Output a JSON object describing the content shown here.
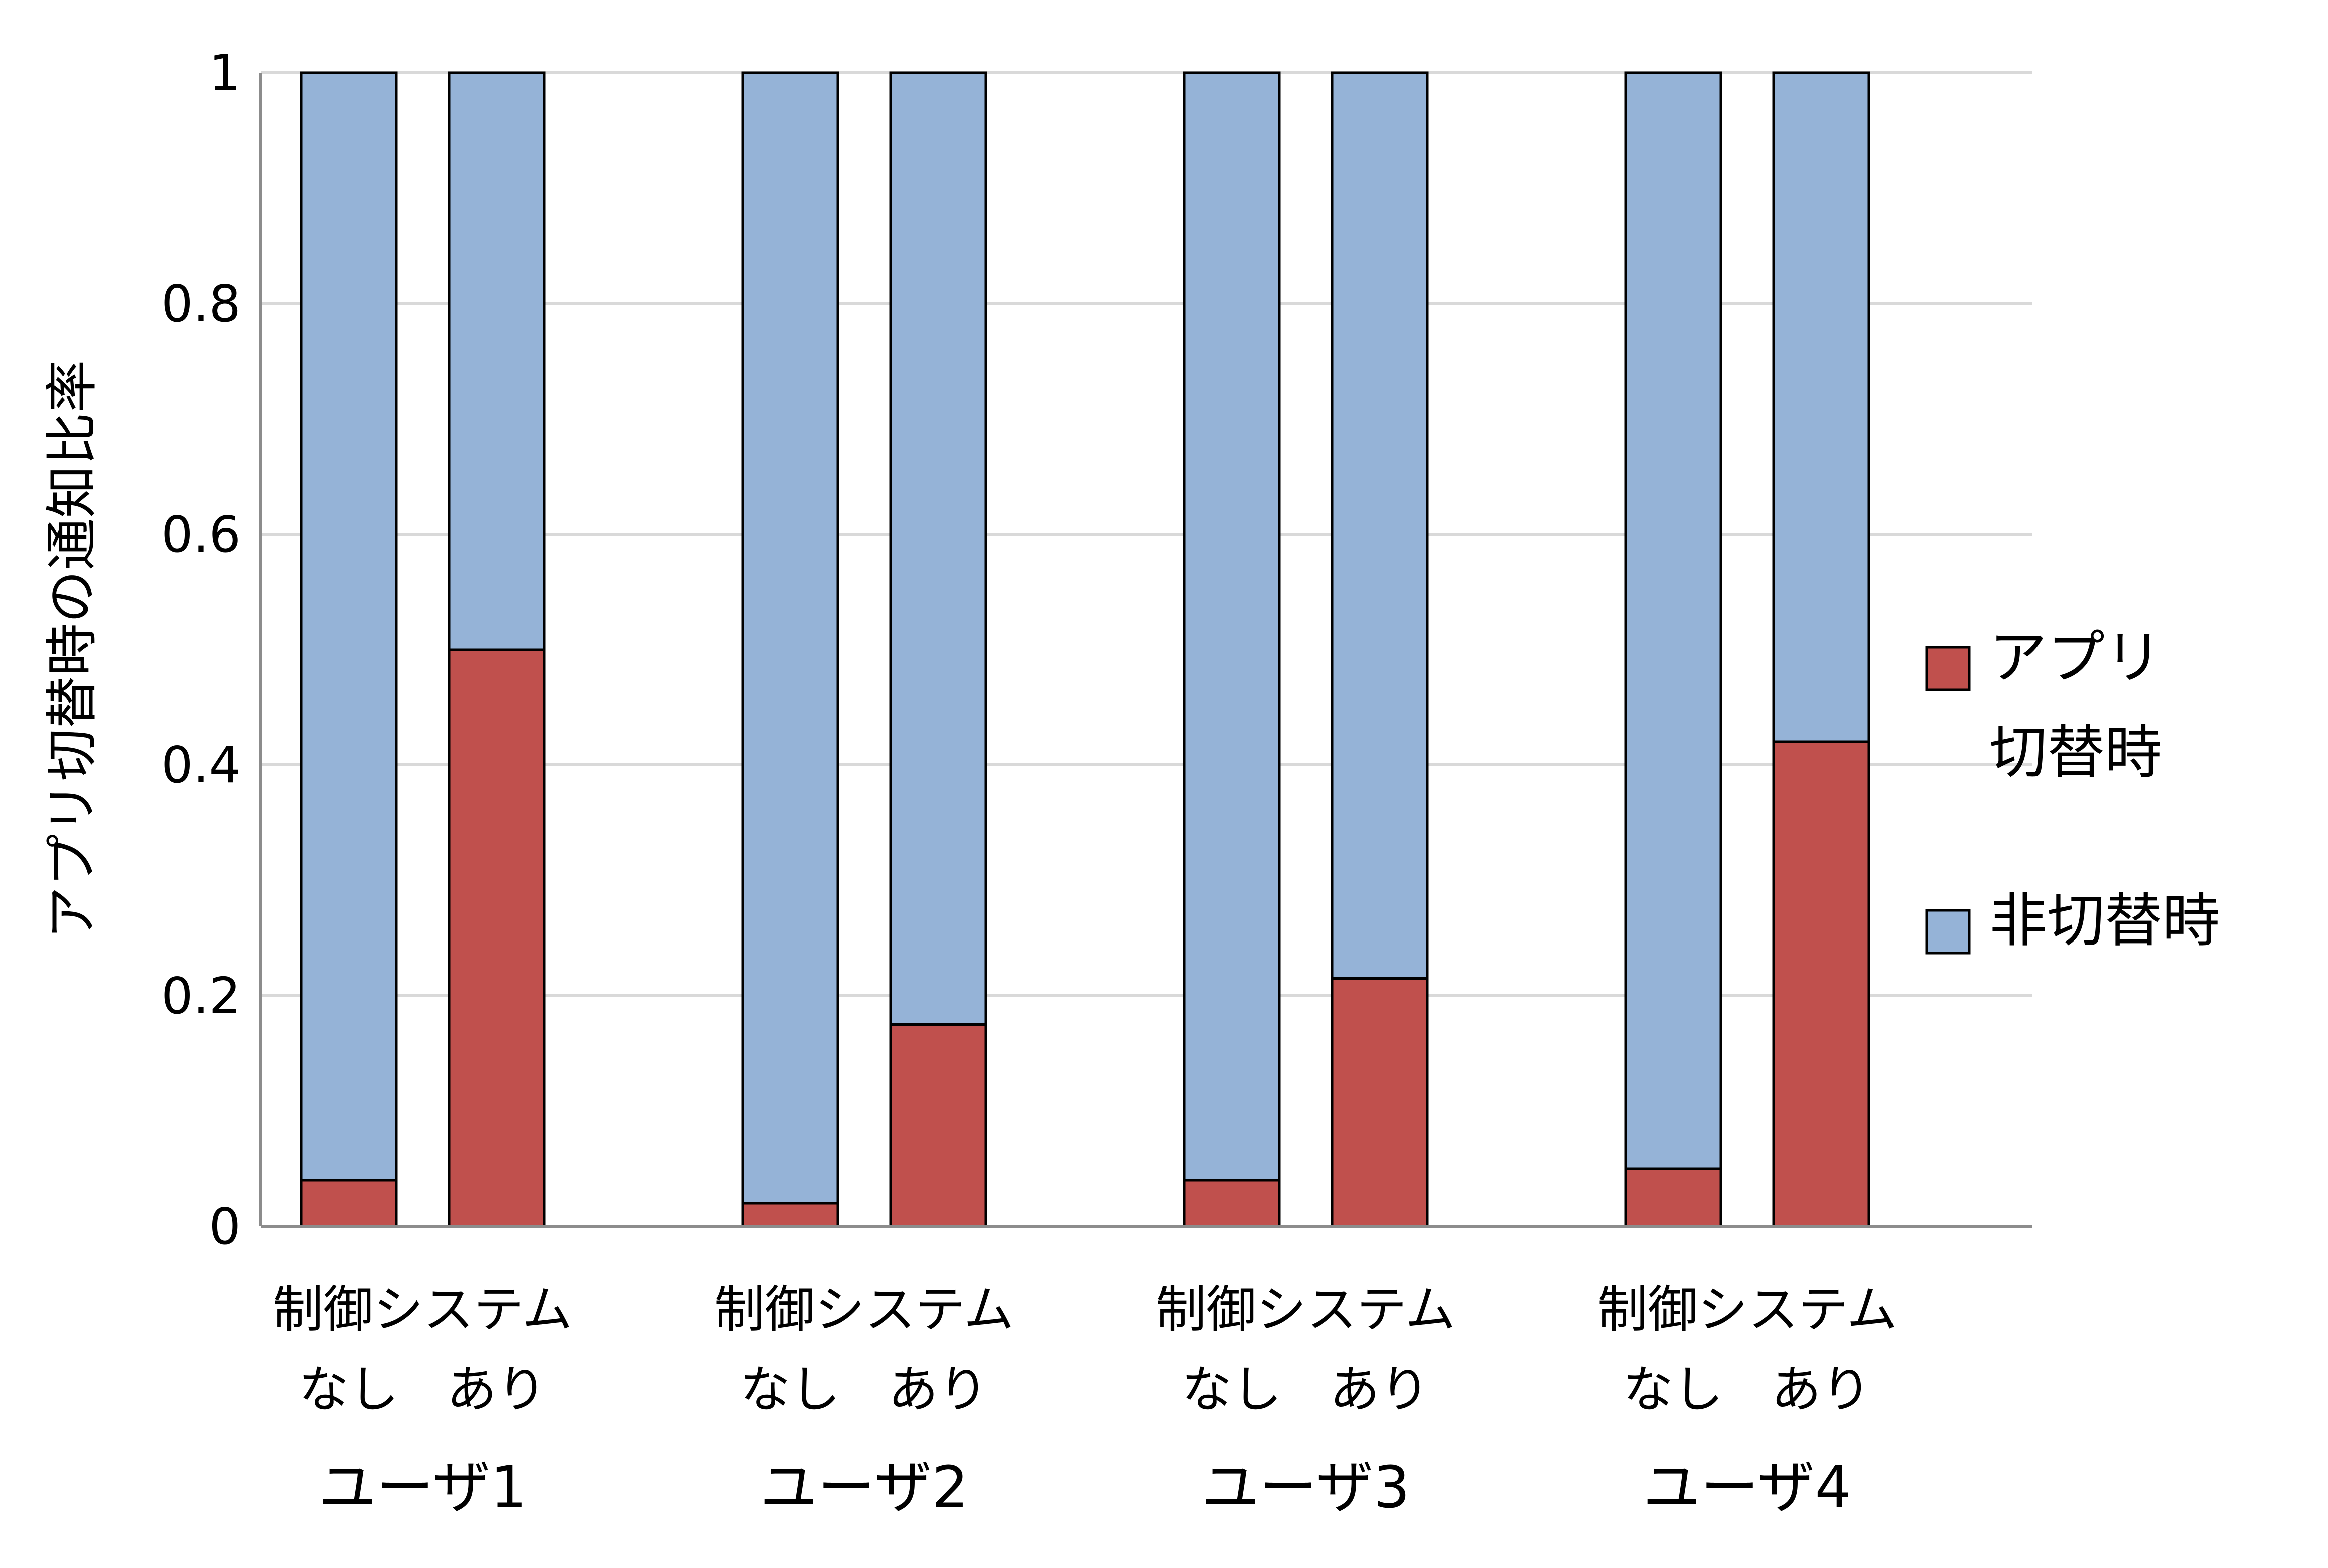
{
  "chart_data": {
    "type": "bar",
    "stacked": true,
    "ylabel": "アプリ切替時の通知比率",
    "ylim": [
      0,
      1
    ],
    "yticks": [
      "0",
      "0.2",
      "0.4",
      "0.6",
      "0.8",
      "1"
    ],
    "grid": true,
    "legend_position": "right",
    "system_label": "制御システム",
    "groups": [
      {
        "label": "ユーザ1",
        "bars": [
          {
            "label": "なし",
            "app_switch": 0.04,
            "non_switch": 0.96
          },
          {
            "label": "あり",
            "app_switch": 0.5,
            "non_switch": 0.5
          }
        ]
      },
      {
        "label": "ユーザ2",
        "bars": [
          {
            "label": "なし",
            "app_switch": 0.02,
            "non_switch": 0.98
          },
          {
            "label": "あり",
            "app_switch": 0.175,
            "non_switch": 0.825
          }
        ]
      },
      {
        "label": "ユーザ3",
        "bars": [
          {
            "label": "なし",
            "app_switch": 0.04,
            "non_switch": 0.96
          },
          {
            "label": "あり",
            "app_switch": 0.215,
            "non_switch": 0.785
          }
        ]
      },
      {
        "label": "ユーザ4",
        "bars": [
          {
            "label": "なし",
            "app_switch": 0.05,
            "non_switch": 0.95
          },
          {
            "label": "あり",
            "app_switch": 0.42,
            "non_switch": 0.58
          }
        ]
      }
    ],
    "series": [
      {
        "key": "app_switch",
        "name_lines": [
          "アプリ",
          "切替時"
        ],
        "color": "#c0504d"
      },
      {
        "key": "non_switch",
        "name_lines": [
          "非切替時"
        ],
        "color": "#95b3d7"
      }
    ]
  }
}
